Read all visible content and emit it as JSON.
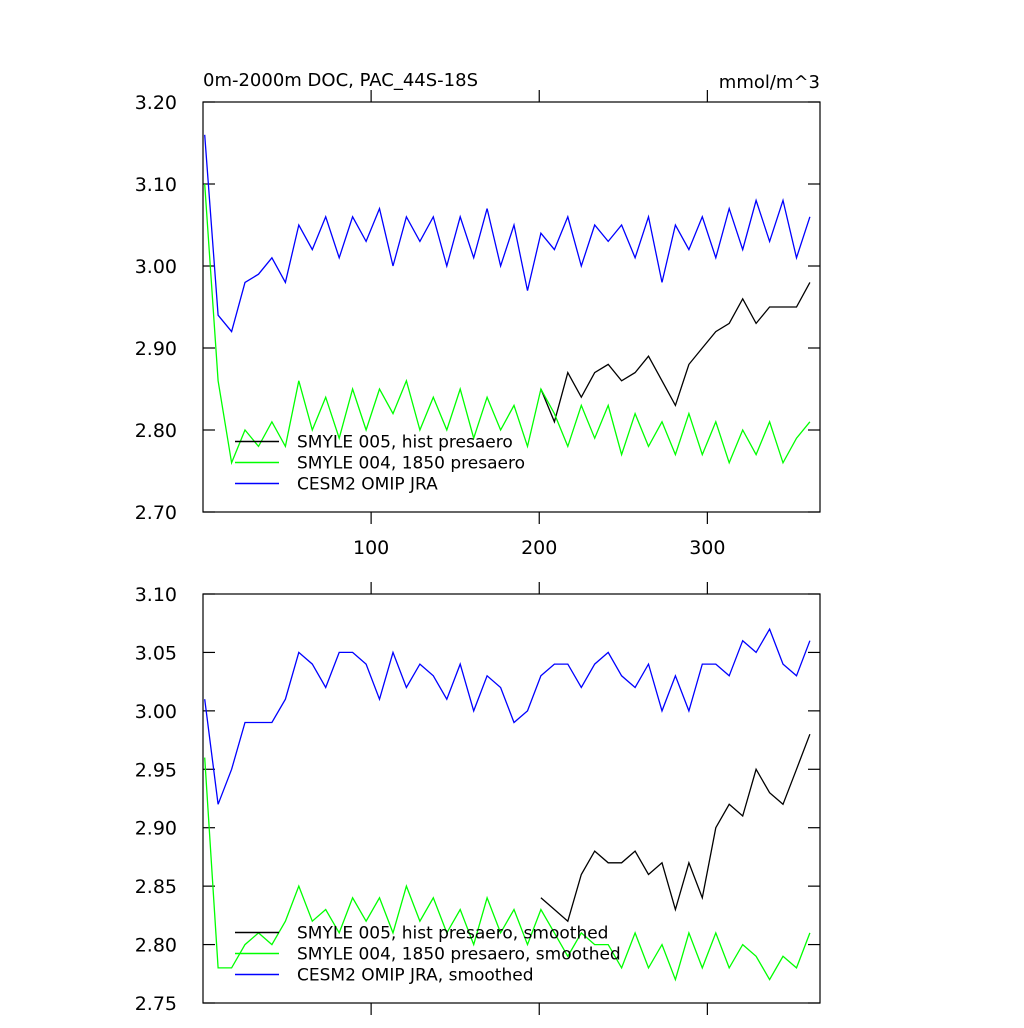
{
  "chart_data": [
    {
      "type": "line",
      "title": "0m-2000m DOC, PAC_44S-18S",
      "units": "mmol/m^3",
      "x": [
        1,
        9,
        17,
        25,
        33,
        41,
        49,
        57,
        65,
        73,
        81,
        89,
        97,
        105,
        113,
        121,
        129,
        137,
        145,
        153,
        161,
        169,
        177,
        185,
        193,
        201,
        209,
        217,
        225,
        233,
        241,
        249,
        257,
        265,
        273,
        281,
        289,
        297,
        305,
        313,
        321,
        329,
        337,
        345,
        353,
        361
      ],
      "series": [
        {
          "name": "SMYLE 005, hist presaero",
          "color": "#000000",
          "values": [
            null,
            null,
            null,
            null,
            null,
            null,
            null,
            null,
            null,
            null,
            null,
            null,
            null,
            null,
            null,
            null,
            null,
            null,
            null,
            null,
            null,
            null,
            null,
            null,
            null,
            2.85,
            2.81,
            2.87,
            2.84,
            2.87,
            2.88,
            2.86,
            2.87,
            2.89,
            2.86,
            2.83,
            2.88,
            2.9,
            2.92,
            2.93,
            2.96,
            2.93,
            2.95,
            2.95,
            2.95,
            2.98
          ]
        },
        {
          "name": "SMYLE 004, 1850 presaero",
          "color": "#00ff00",
          "values": [
            3.1,
            2.86,
            2.76,
            2.8,
            2.78,
            2.81,
            2.78,
            2.86,
            2.8,
            2.84,
            2.79,
            2.85,
            2.8,
            2.85,
            2.82,
            2.86,
            2.8,
            2.84,
            2.8,
            2.85,
            2.79,
            2.84,
            2.8,
            2.83,
            2.78,
            2.85,
            2.82,
            2.78,
            2.83,
            2.79,
            2.83,
            2.77,
            2.82,
            2.78,
            2.81,
            2.77,
            2.82,
            2.77,
            2.81,
            2.76,
            2.8,
            2.77,
            2.81,
            2.76,
            2.79,
            2.81
          ]
        },
        {
          "name": "CESM2 OMIP JRA",
          "color": "#0000ff",
          "values": [
            3.16,
            2.94,
            2.92,
            2.98,
            2.99,
            3.01,
            2.98,
            3.05,
            3.02,
            3.06,
            3.01,
            3.06,
            3.03,
            3.07,
            3.0,
            3.06,
            3.03,
            3.06,
            3.0,
            3.06,
            3.01,
            3.07,
            3.0,
            3.05,
            2.97,
            3.04,
            3.02,
            3.06,
            3.0,
            3.05,
            3.03,
            3.05,
            3.01,
            3.06,
            2.98,
            3.05,
            3.02,
            3.06,
            3.01,
            3.07,
            3.02,
            3.08,
            3.03,
            3.08,
            3.01,
            3.06
          ]
        }
      ],
      "xlim": [
        0,
        367
      ],
      "xticks": [
        100,
        200,
        300
      ],
      "show_xtick_labels": true,
      "ylim": [
        2.7,
        3.2
      ],
      "yticks": [
        {
          "value": 2.7,
          "label": "2.70"
        },
        {
          "value": 2.8,
          "label": "2.80"
        },
        {
          "value": 2.9,
          "label": "2.90"
        },
        {
          "value": 3.0,
          "label": "3.00"
        },
        {
          "value": 3.1,
          "label": "3.10"
        },
        {
          "value": 3.2,
          "label": "3.20"
        }
      ],
      "legend": "lower left"
    },
    {
      "type": "line",
      "x": [
        1,
        9,
        17,
        25,
        33,
        41,
        49,
        57,
        65,
        73,
        81,
        89,
        97,
        105,
        113,
        121,
        129,
        137,
        145,
        153,
        161,
        169,
        177,
        185,
        193,
        201,
        209,
        217,
        225,
        233,
        241,
        249,
        257,
        265,
        273,
        281,
        289,
        297,
        305,
        313,
        321,
        329,
        337,
        345,
        353,
        361
      ],
      "series": [
        {
          "name": "SMYLE 005, hist presaero, smoothed",
          "color": "#000000",
          "values": [
            null,
            null,
            null,
            null,
            null,
            null,
            null,
            null,
            null,
            null,
            null,
            null,
            null,
            null,
            null,
            null,
            null,
            null,
            null,
            null,
            null,
            null,
            null,
            null,
            null,
            2.84,
            2.83,
            2.82,
            2.86,
            2.88,
            2.87,
            2.87,
            2.88,
            2.86,
            2.87,
            2.83,
            2.87,
            2.84,
            2.9,
            2.92,
            2.91,
            2.95,
            2.93,
            2.92,
            2.95,
            2.98
          ]
        },
        {
          "name": "SMYLE 004, 1850 presaero, smoothed",
          "color": "#00ff00",
          "values": [
            2.96,
            2.78,
            2.78,
            2.8,
            2.81,
            2.8,
            2.82,
            2.85,
            2.82,
            2.83,
            2.81,
            2.84,
            2.82,
            2.84,
            2.81,
            2.85,
            2.82,
            2.84,
            2.81,
            2.83,
            2.8,
            2.84,
            2.81,
            2.83,
            2.8,
            2.83,
            2.81,
            2.79,
            2.81,
            2.8,
            2.8,
            2.78,
            2.81,
            2.78,
            2.8,
            2.77,
            2.81,
            2.78,
            2.81,
            2.78,
            2.8,
            2.79,
            2.77,
            2.79,
            2.78,
            2.81
          ]
        },
        {
          "name": "CESM2 OMIP JRA, smoothed",
          "color": "#0000ff",
          "values": [
            3.01,
            2.92,
            2.95,
            2.99,
            2.99,
            2.99,
            3.01,
            3.05,
            3.04,
            3.02,
            3.05,
            3.05,
            3.04,
            3.01,
            3.05,
            3.02,
            3.04,
            3.03,
            3.01,
            3.04,
            3.0,
            3.03,
            3.02,
            2.99,
            3.0,
            3.03,
            3.04,
            3.04,
            3.02,
            3.04,
            3.05,
            3.03,
            3.02,
            3.04,
            3.0,
            3.03,
            3.0,
            3.04,
            3.04,
            3.03,
            3.06,
            3.05,
            3.07,
            3.04,
            3.03,
            3.06
          ]
        }
      ],
      "xlim": [
        0,
        367
      ],
      "xticks": [
        100,
        200,
        300
      ],
      "show_xtick_labels": false,
      "ylim": [
        2.75,
        3.1
      ],
      "yticks": [
        2.75,
        {
          "value": 2.8,
          "label": "2.80"
        },
        2.85,
        {
          "value": 2.9,
          "label": "2.90"
        },
        2.95,
        {
          "value": 3.0,
          "label": "3.00"
        },
        3.05,
        {
          "value": 3.1,
          "label": "3.10"
        }
      ],
      "legend": "lower left"
    }
  ]
}
